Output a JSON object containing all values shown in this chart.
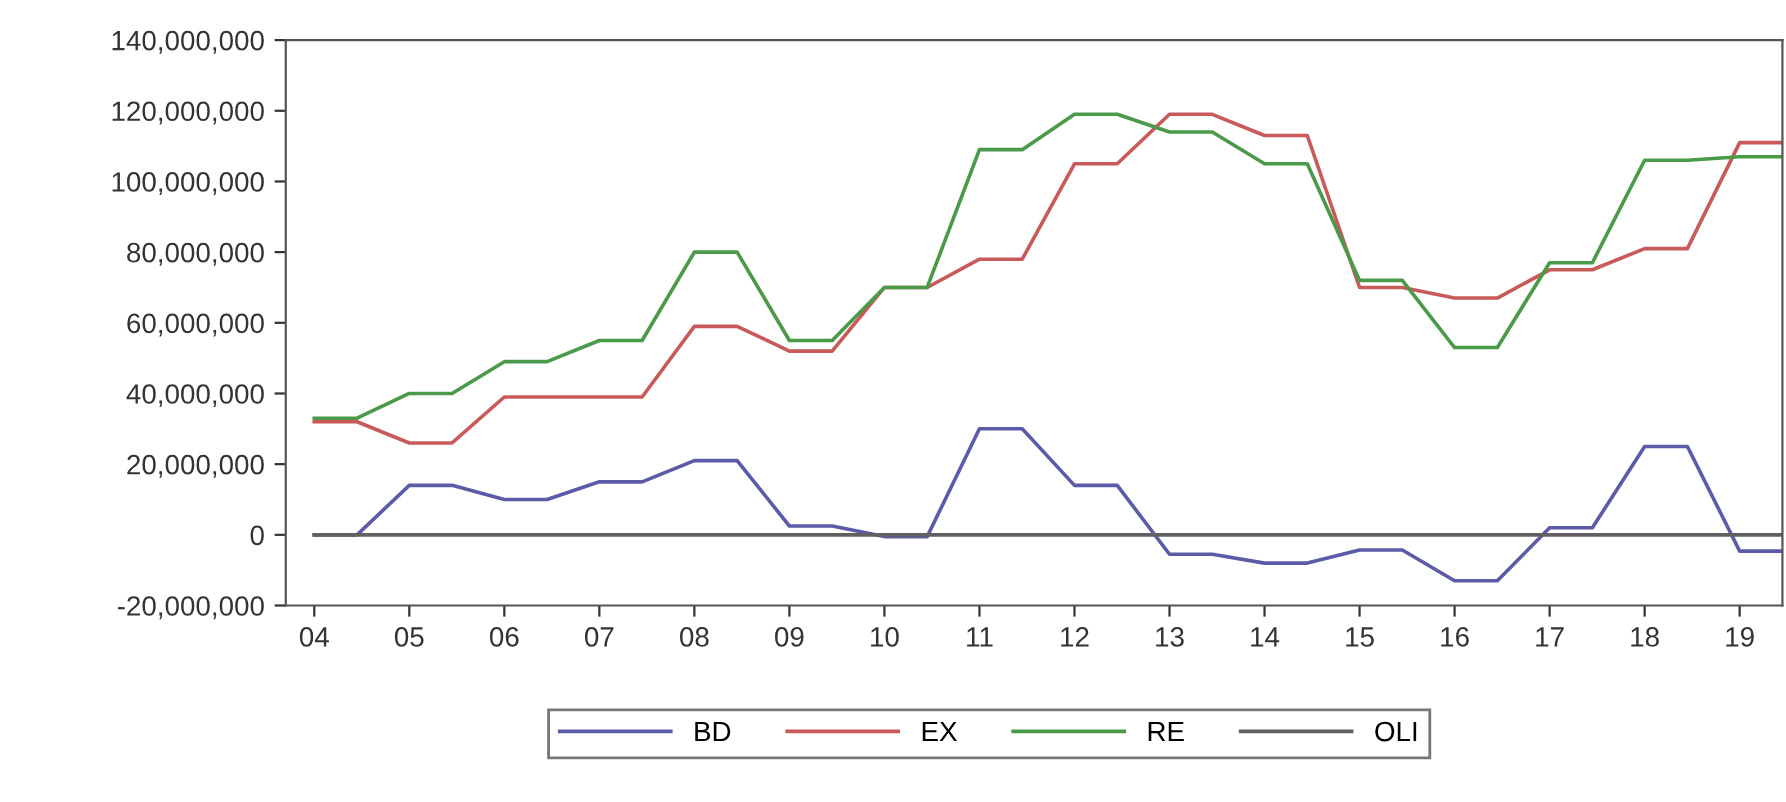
{
  "chart_data": {
    "type": "line",
    "x": [
      2004,
      2004.45,
      2005,
      2005.45,
      2006,
      2006.45,
      2007,
      2007.45,
      2008,
      2008.45,
      2009,
      2009.45,
      2010,
      2010.45,
      2011,
      2011.45,
      2012,
      2012.45,
      2013,
      2013.45,
      2014,
      2014.45,
      2015,
      2015.45,
      2016,
      2016.45,
      2017,
      2017.45,
      2018,
      2018.45,
      2019,
      2019.45
    ],
    "series": [
      {
        "name": "BD",
        "color": "#5b5ba8",
        "values": [
          0,
          0,
          14000000,
          14000000,
          10000000,
          10000000,
          15000000,
          15000000,
          21000000,
          21000000,
          2500000,
          2500000,
          -500000,
          -500000,
          30000000,
          30000000,
          14000000,
          14000000,
          -5500000,
          -5500000,
          -8000000,
          -8000000,
          -4300000,
          -4300000,
          -13000000,
          -13000000,
          2000000,
          2000000,
          25000000,
          25000000,
          -4600000,
          -4600000
        ]
      },
      {
        "name": "EX",
        "color": "#c85a5a",
        "values": [
          32000000,
          32000000,
          26000000,
          26000000,
          39000000,
          39000000,
          39000000,
          39000000,
          59000000,
          59000000,
          52000000,
          52000000,
          70000000,
          70000000,
          78000000,
          78000000,
          105000000,
          105000000,
          119000000,
          119000000,
          113000000,
          113000000,
          70000000,
          70000000,
          67000000,
          67000000,
          75000000,
          75000000,
          81000000,
          81000000,
          111000000,
          111000000
        ]
      },
      {
        "name": "RE",
        "color": "#4a9a4a",
        "values": [
          33000000,
          33000000,
          40000000,
          40000000,
          49000000,
          49000000,
          55000000,
          55000000,
          80000000,
          80000000,
          55000000,
          55000000,
          70000000,
          70000000,
          109000000,
          109000000,
          119000000,
          119000000,
          114000000,
          114000000,
          105000000,
          105000000,
          72000000,
          72000000,
          53000000,
          53000000,
          77000000,
          77000000,
          106000000,
          106000000,
          107000000,
          107000000
        ]
      },
      {
        "name": "OLI",
        "color": "#606060",
        "values": [
          0,
          0,
          0,
          0,
          0,
          0,
          0,
          0,
          0,
          0,
          0,
          0,
          0,
          0,
          0,
          0,
          0,
          0,
          0,
          0,
          0,
          0,
          0,
          0,
          0,
          0,
          0,
          0,
          0,
          0,
          0,
          0
        ]
      }
    ],
    "xlim": [
      2003.7,
      2019.45
    ],
    "xticks": [
      {
        "value": 2004,
        "label": "04"
      },
      {
        "value": 2005,
        "label": "05"
      },
      {
        "value": 2006,
        "label": "06"
      },
      {
        "value": 2007,
        "label": "07"
      },
      {
        "value": 2008,
        "label": "08"
      },
      {
        "value": 2009,
        "label": "09"
      },
      {
        "value": 2010,
        "label": "10"
      },
      {
        "value": 2011,
        "label": "11"
      },
      {
        "value": 2012,
        "label": "12"
      },
      {
        "value": 2013,
        "label": "13"
      },
      {
        "value": 2014,
        "label": "14"
      },
      {
        "value": 2015,
        "label": "15"
      },
      {
        "value": 2016,
        "label": "16"
      },
      {
        "value": 2017,
        "label": "17"
      },
      {
        "value": 2018,
        "label": "18"
      },
      {
        "value": 2019,
        "label": "19"
      }
    ],
    "ylim": [
      -20000000,
      140000000
    ],
    "yticks": [
      {
        "value": -20000000,
        "label": "-20,000,000"
      },
      {
        "value": 0,
        "label": "0"
      },
      {
        "value": 20000000,
        "label": "20,000,000"
      },
      {
        "value": 40000000,
        "label": "40,000,000"
      },
      {
        "value": 60000000,
        "label": "60,000,000"
      },
      {
        "value": 80000000,
        "label": "80,000,000"
      },
      {
        "value": 100000000,
        "label": "100,000,000"
      },
      {
        "value": 120000000,
        "label": "120,000,000"
      },
      {
        "value": 140000000,
        "label": "140,000,000"
      }
    ],
    "grid": false,
    "legend": "bottom",
    "line_style": "solid",
    "marker": "none"
  }
}
